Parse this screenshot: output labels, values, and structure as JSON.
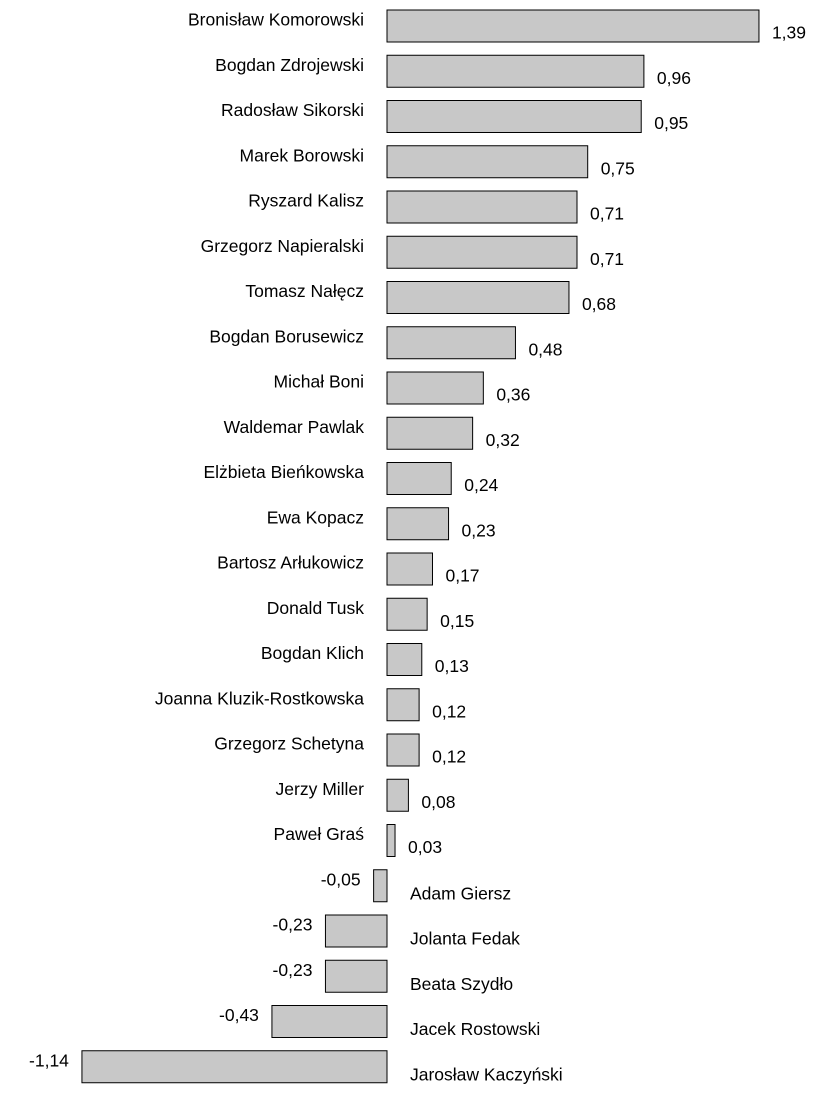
{
  "chart_data": {
    "type": "bar",
    "orientation": "horizontal",
    "title": "",
    "xlabel": "",
    "ylabel": "",
    "grid": false,
    "legend": "none",
    "bar_color": "#c8c8c8",
    "bar_edge_color": "#000000",
    "xlim": [
      -1.14,
      1.39
    ],
    "categories": [
      "Bronisław Komorowski",
      "Bogdan Zdrojewski",
      "Radosław Sikorski",
      "Marek Borowski",
      "Ryszard Kalisz",
      "Grzegorz Napieralski",
      "Tomasz Nałęcz",
      "Bogdan Borusewicz",
      "Michał Boni",
      "Waldemar Pawlak",
      "Elżbieta Bieńkowska",
      "Ewa Kopacz",
      "Bartosz Arłukowicz",
      "Donald Tusk",
      "Bogdan Klich",
      "Joanna Kluzik-Rostkowska",
      "Grzegorz Schetyna",
      "Jerzy Miller",
      "Paweł Graś",
      "Adam Giersz",
      "Jolanta Fedak",
      "Beata Szydło",
      "Jacek Rostowski",
      "Jarosław Kaczyński"
    ],
    "values": [
      1.39,
      0.96,
      0.95,
      0.75,
      0.71,
      0.71,
      0.68,
      0.48,
      0.36,
      0.32,
      0.24,
      0.23,
      0.17,
      0.15,
      0.13,
      0.12,
      0.12,
      0.08,
      0.03,
      -0.05,
      -0.23,
      -0.23,
      -0.43,
      -1.14
    ],
    "value_labels": [
      "1,39",
      "0,96",
      "0,95",
      "0,75",
      "0,71",
      "0,71",
      "0,68",
      "0,48",
      "0,36",
      "0,32",
      "0,24",
      "0,23",
      "0,17",
      "0,15",
      "0,13",
      "0,12",
      "0,12",
      "0,08",
      "0,03",
      "-0,05",
      "-0,23",
      "-0,23",
      "-0,43",
      "-1,14"
    ]
  }
}
